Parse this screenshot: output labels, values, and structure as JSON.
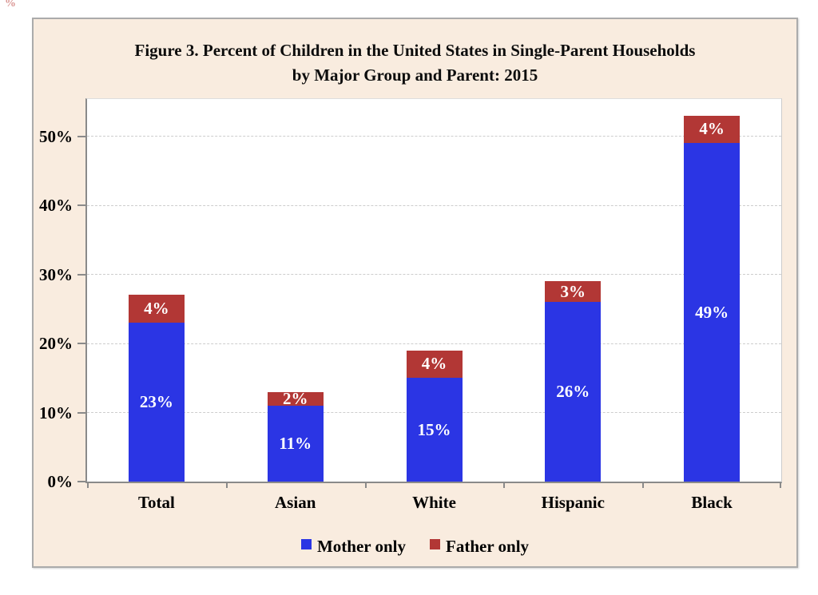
{
  "page": {
    "stray_mark": "%"
  },
  "chart_data": {
    "type": "bar",
    "stacked": true,
    "title_line1": "Figure 3. Percent of Children in the United States in Single-Parent Households",
    "title_line2": "by Major Group and Parent: 2015",
    "categories": [
      "Total",
      "Asian",
      "White",
      "Hispanic",
      "Black"
    ],
    "series": [
      {
        "name": "Mother only",
        "color": "#2B35E4",
        "values": [
          23,
          11,
          15,
          26,
          49
        ],
        "labels": [
          "23%",
          "11%",
          "15%",
          "26%",
          "49%"
        ]
      },
      {
        "name": "Father only",
        "color": "#B23735",
        "values": [
          4,
          2,
          4,
          3,
          4
        ],
        "labels": [
          "4%",
          "2%",
          "4%",
          "3%",
          "4%"
        ]
      }
    ],
    "totals": [
      27,
      13,
      19,
      29,
      53
    ],
    "y_axis": {
      "ticks": [
        0,
        10,
        20,
        30,
        40,
        50
      ],
      "tick_labels": [
        "0%",
        "10%",
        "20%",
        "30%",
        "40%",
        "50%"
      ],
      "ylim": [
        0,
        55.5
      ],
      "grid": "dashed-horizontal"
    },
    "x_axis": {
      "label": ""
    },
    "legend": {
      "position": "bottom-center",
      "entries": [
        "Mother only",
        "Father only"
      ]
    },
    "colors": {
      "panel_background": "#F9ECDF",
      "plot_background": "#FFFFFF",
      "axis": "#8A8A8A",
      "gridline": "#CDCDCD",
      "title_text": "#0D0D0D",
      "bar_label_text": "#FFFFFF"
    }
  }
}
